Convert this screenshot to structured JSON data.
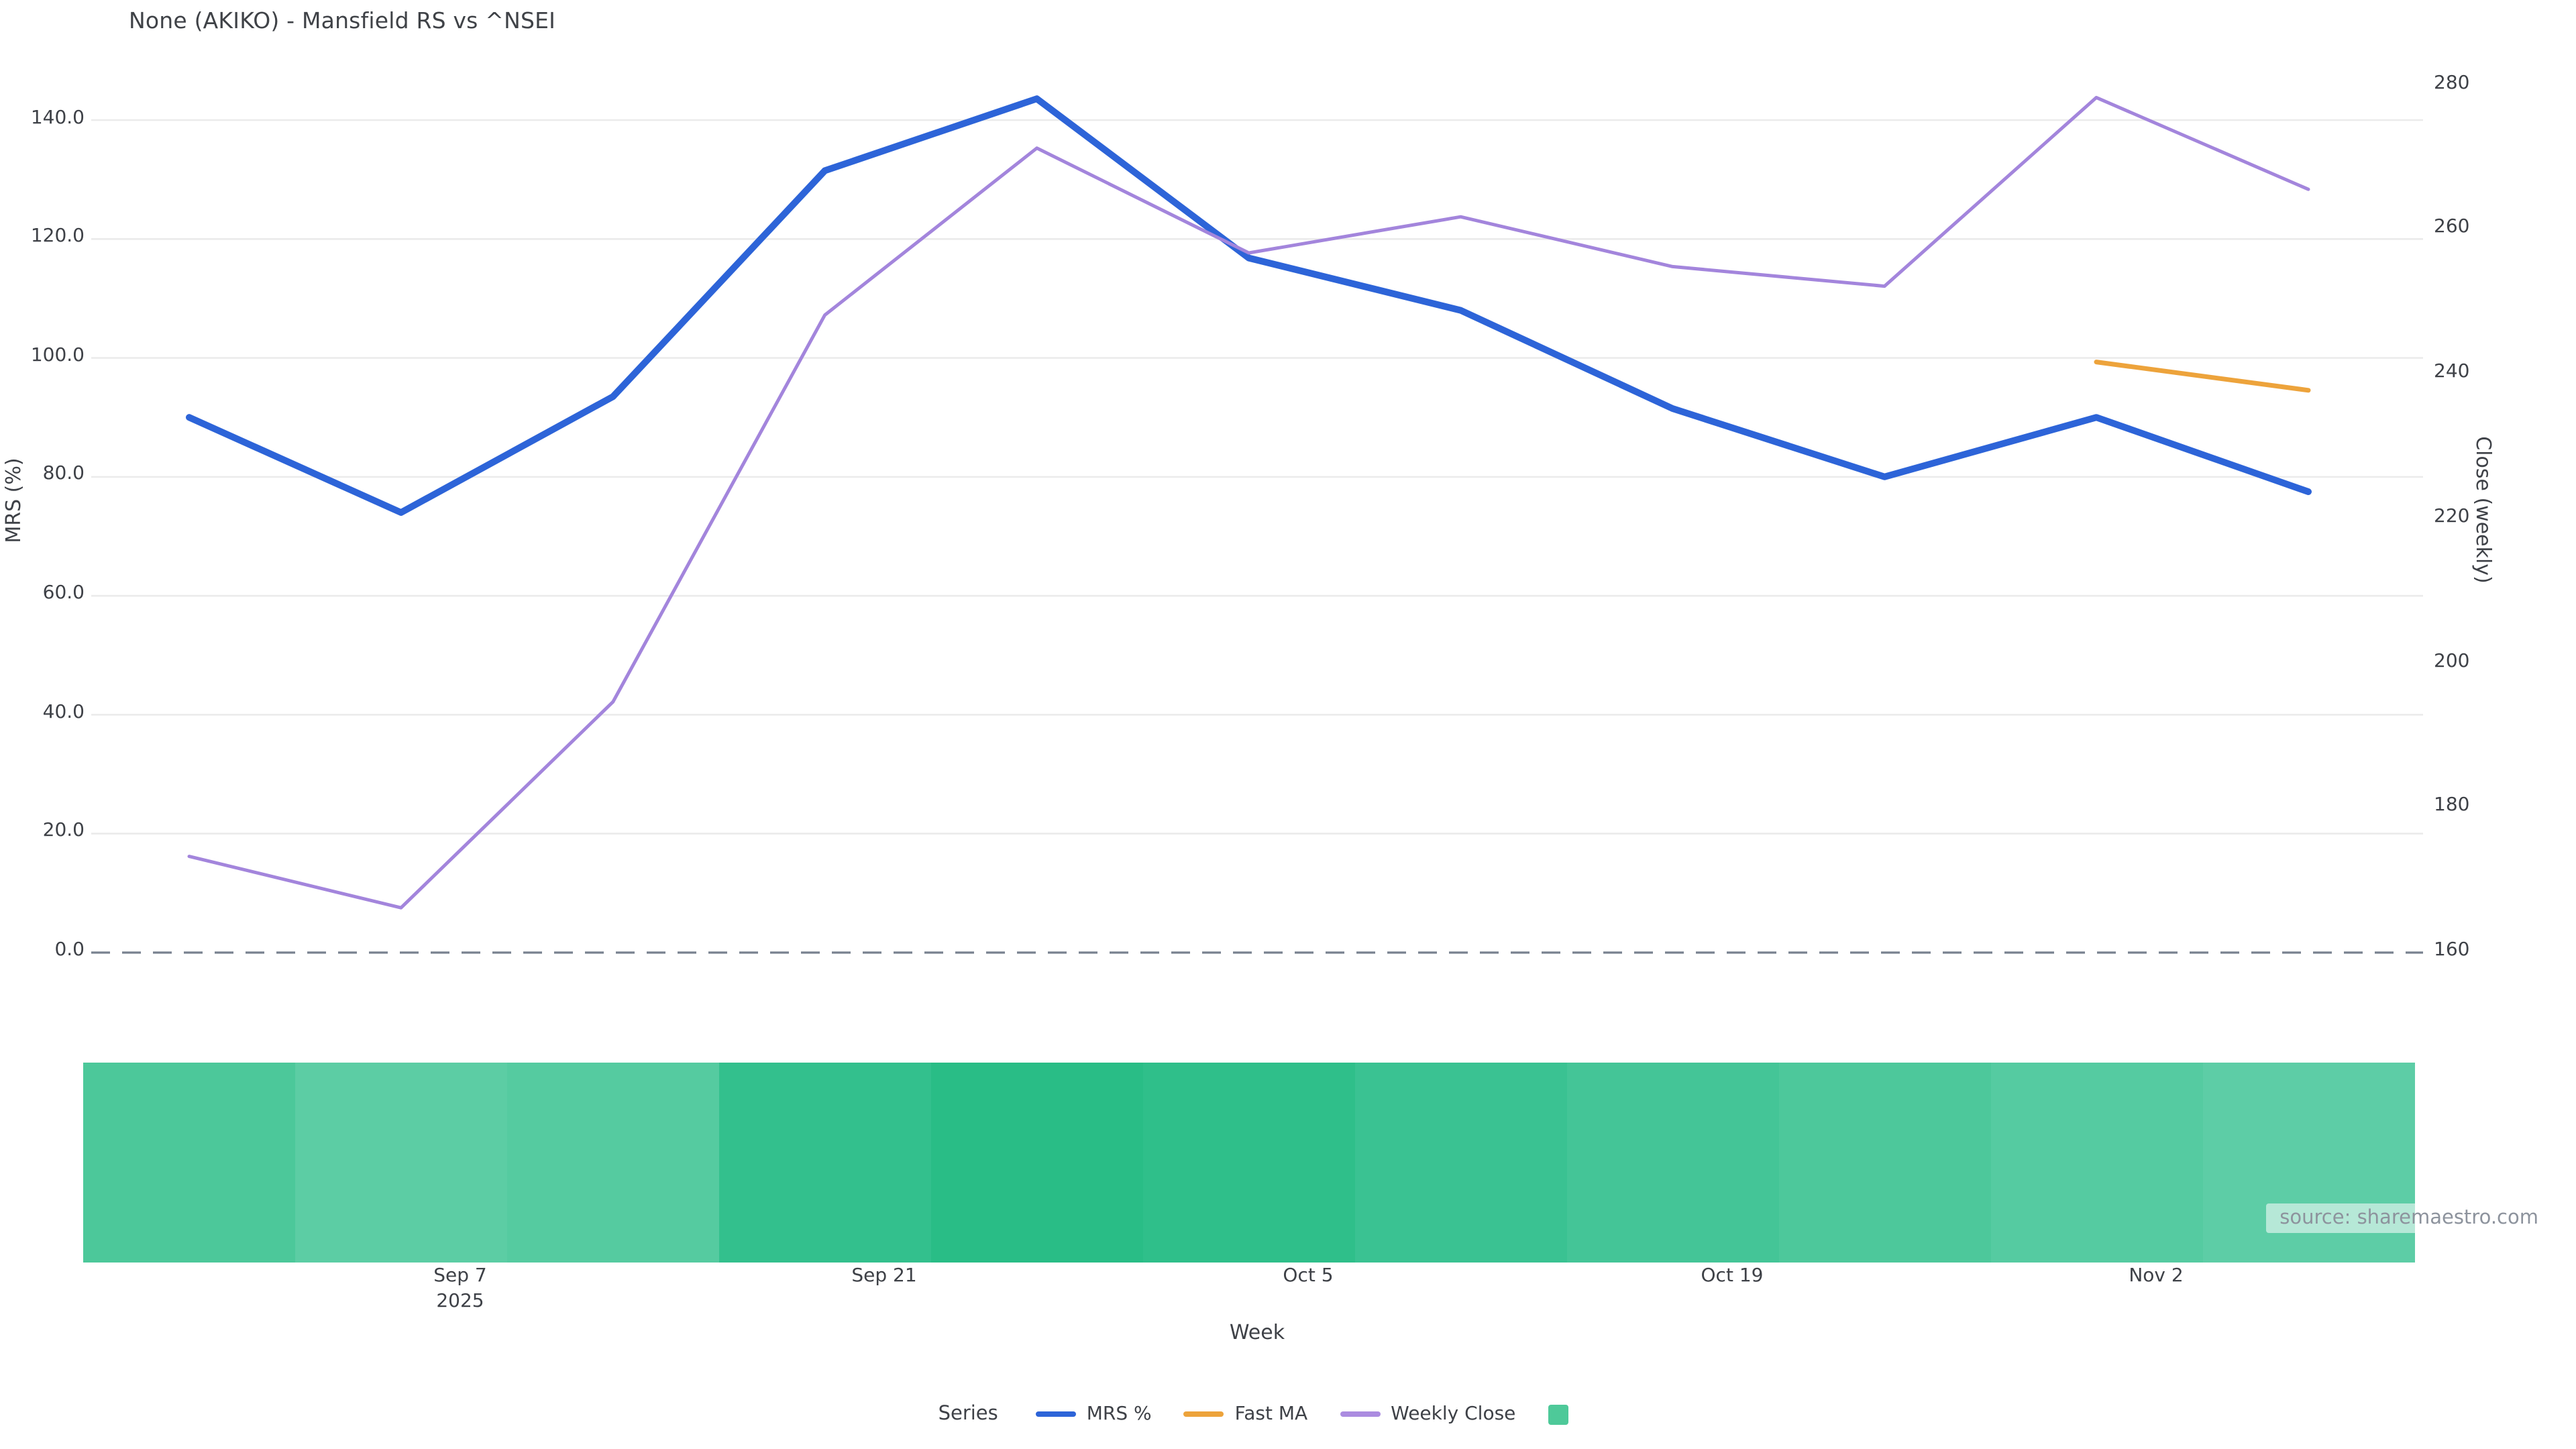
{
  "title": "None (AKIKO) - Mansfield RS vs ^NSEI",
  "watermark": "source: sharemaestro.com",
  "legend": {
    "title": "Series",
    "items": [
      {
        "label": "MRS %",
        "swatch": "line",
        "color": "#2d64d8"
      },
      {
        "label": "Fast MA",
        "swatch": "line",
        "color": "#eda33b"
      },
      {
        "label": "Weekly Close",
        "swatch": "line",
        "color": "#ab8ce0"
      },
      {
        "label": "",
        "swatch": "square",
        "color": "#4ec999"
      }
    ]
  },
  "chart_data": {
    "type": "line",
    "x": {
      "label": "Week",
      "tick_labels": [
        "Sep 7",
        "Sep 21",
        "Oct 5",
        "Oct 19",
        "Nov 2"
      ],
      "year_sublabel": "2025",
      "n_points": 11
    },
    "y_left": {
      "label": "MRS (%)",
      "tick_labels": [
        "0.0",
        "20.0",
        "40.0",
        "60.0",
        "80.0",
        "100.0",
        "120.0",
        "140.0"
      ],
      "tick_values": [
        0,
        20,
        40,
        60,
        80,
        100,
        120,
        140
      ],
      "range": [
        0,
        151
      ]
    },
    "y_right": {
      "label": "Close (weekly)",
      "tick_labels": [
        "160",
        "180",
        "200",
        "220",
        "240",
        "260",
        "280"
      ],
      "tick_values": [
        160,
        180,
        200,
        220,
        240,
        260,
        280
      ],
      "range": [
        160,
        284
      ]
    },
    "zero_line": {
      "value": 0,
      "style": "dashed",
      "color": "#78818f"
    },
    "grid_color": "#ebebeb",
    "series": [
      {
        "name": "MRS %",
        "axis": "left",
        "color": "#2d64d8",
        "width": 5,
        "values": [
          90,
          74,
          93.5,
          131.5,
          143.6,
          116.8,
          108,
          91.5,
          80,
          90,
          77.5
        ]
      },
      {
        "name": "Fast MA",
        "axis": "right",
        "color": "#eda33b",
        "width": 3.5,
        "values": [
          null,
          null,
          null,
          null,
          null,
          null,
          null,
          null,
          null,
          241.7,
          237.8
        ]
      },
      {
        "name": "Weekly Close",
        "axis": "right",
        "color": "#a385dc",
        "width": 2.5,
        "values": [
          173.3,
          166.2,
          194.7,
          248.2,
          271.3,
          256.8,
          261.8,
          254.9,
          252.2,
          278.3,
          265.6
        ]
      }
    ],
    "heatmap_strip": {
      "n_cells": 11,
      "colors": [
        "#4cc89a",
        "#5ccda4",
        "#55cba0",
        "#33c08d",
        "#29bd86",
        "#2fbf8a",
        "#3ac292",
        "#44c597",
        "#4dc89b",
        "#55cba1",
        "#5dcda6"
      ]
    }
  }
}
